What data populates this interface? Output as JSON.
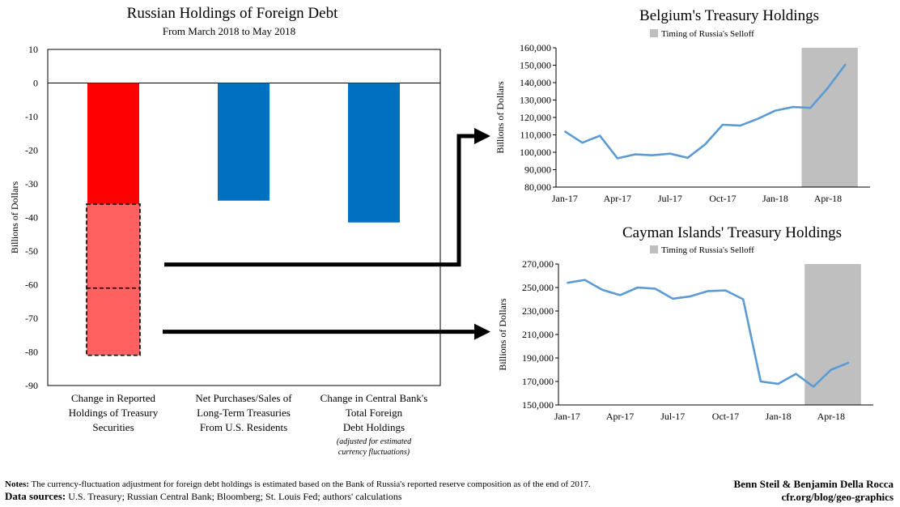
{
  "chart_data": [
    {
      "type": "bar",
      "title": "Russian Holdings of Foreign Debt",
      "subtitle": "From March 2018 to May 2018",
      "ylabel": "Billions of Dollars",
      "ylim": [
        -90,
        10
      ],
      "yticks": [
        "10",
        "0",
        "-10",
        "-20",
        "-30",
        "-40",
        "-50",
        "-60",
        "-70",
        "-80",
        "-90"
      ],
      "categories": [
        [
          "Change in Reported",
          "Holdings of Treasury",
          "Securities"
        ],
        [
          "Net Purchases/Sales of",
          "Long-Term Treasuries",
          "From U.S. Residents"
        ],
        [
          "Change in Central Bank's",
          "Total Foreign",
          "Debt Holdings"
        ]
      ],
      "category_note": [
        "(adjusted for estimated",
        "currency fluctuations)"
      ],
      "values": [
        -81,
        -35,
        -41.5
      ],
      "bar_colors": [
        "#ff0000",
        "#0070c0",
        "#0070c0"
      ],
      "stacked_first_bar": {
        "solid_portion": [
          0,
          -36
        ],
        "dashed_portion": [
          -36,
          -81
        ],
        "dashed_split": -61,
        "solid_color": "#ff0000",
        "dashed_color": "#ff6060"
      },
      "arrows": [
        {
          "from_value": -54,
          "to_chart": "Belgium's Treasury Holdings"
        },
        {
          "from_value": -74,
          "to_chart": "Cayman Islands' Treasury Holdings"
        }
      ]
    },
    {
      "type": "line",
      "title": "Belgium's Treasury Holdings",
      "ylabel": "Billions of Dollars",
      "legend": "Timing of Russia's Selloff",
      "legend_color": "#bfbfbf",
      "line_color": "#5b9bd5",
      "ylim": [
        80000,
        160000
      ],
      "yticks": [
        "80,000",
        "90,000",
        "100,000",
        "110,000",
        "120,000",
        "130,000",
        "140,000",
        "150,000",
        "160,000"
      ],
      "xticks": [
        "Jan-17",
        "Apr-17",
        "Jul-17",
        "Oct-17",
        "Jan-18",
        "Apr-18"
      ],
      "x": [
        "Jan-17",
        "Feb-17",
        "Mar-17",
        "Apr-17",
        "May-17",
        "Jun-17",
        "Jul-17",
        "Aug-17",
        "Sep-17",
        "Oct-17",
        "Nov-17",
        "Dec-17",
        "Jan-18",
        "Feb-18",
        "Mar-18",
        "Apr-18",
        "May-18"
      ],
      "values": [
        112000,
        105500,
        109500,
        96500,
        98800,
        98300,
        99200,
        96800,
        104500,
        115800,
        115300,
        119200,
        123900,
        126000,
        125500,
        137000,
        150500
      ],
      "shade_from": 13.5,
      "shade_to": 16.7
    },
    {
      "type": "line",
      "title": "Cayman Islands' Treasury Holdings",
      "ylabel": "Billions of Dollars",
      "legend": "Timing of Russia's Selloff",
      "legend_color": "#bfbfbf",
      "line_color": "#5b9bd5",
      "ylim": [
        150000,
        270000
      ],
      "yticks": [
        "150,000",
        "170,000",
        "190,000",
        "210,000",
        "230,000",
        "250,000",
        "270,000"
      ],
      "xticks": [
        "Jan-17",
        "Apr-17",
        "Jul-17",
        "Oct-17",
        "Jan-18",
        "Apr-18"
      ],
      "x": [
        "Jan-17",
        "Feb-17",
        "Mar-17",
        "Apr-17",
        "May-17",
        "Jun-17",
        "Jul-17",
        "Aug-17",
        "Sep-17",
        "Oct-17",
        "Nov-17",
        "Dec-17",
        "Jan-18",
        "Feb-18",
        "Mar-18",
        "Apr-18",
        "May-18"
      ],
      "values": [
        254000,
        256500,
        248000,
        243500,
        250000,
        249000,
        240500,
        242500,
        247000,
        247500,
        240000,
        170000,
        168000,
        176500,
        165500,
        180000,
        186000
      ],
      "shade_from": 13.5,
      "shade_to": 16.7
    }
  ],
  "footer": {
    "notes_label": "Notes:",
    "notes_text": " The currency-fluctuation adjustment for foreign debt holdings is estimated based on the Bank of Russia's reported reserve composition as of the end of 2017.",
    "sources_label": "Data sources:",
    "sources_text": "  U.S. Treasury; Russian Central Bank; Bloomberg; St. Louis Fed; authors' calculations",
    "authors": "Benn Steil & Benjamin Della Rocca",
    "site": "cfr.org/blog/geo-graphics"
  }
}
